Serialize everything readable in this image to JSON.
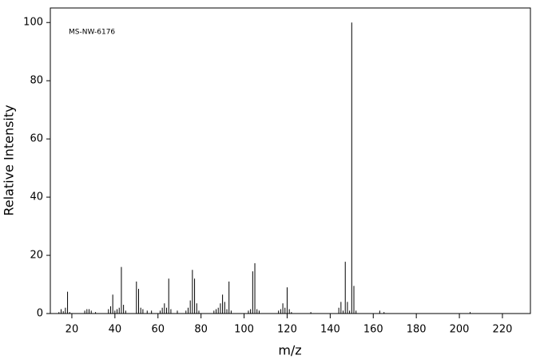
{
  "chart_data": {
    "type": "stem",
    "annotation": "MS-NW-6176",
    "xlabel": "m/z",
    "ylabel": "Relative Intensity",
    "color": "#000000",
    "xlim": [
      10,
      233
    ],
    "ylim": [
      0,
      105
    ],
    "xticks": [
      20,
      40,
      60,
      80,
      100,
      120,
      140,
      160,
      180,
      200,
      220
    ],
    "yticks": [
      0,
      20,
      40,
      60,
      80,
      100
    ],
    "x": [
      14,
      15,
      16,
      17,
      18,
      19,
      26,
      27,
      28,
      29,
      31,
      37,
      38,
      39,
      40,
      41,
      42,
      43,
      44,
      45,
      50,
      51,
      52,
      53,
      55,
      57,
      61,
      62,
      63,
      64,
      65,
      66,
      69,
      73,
      74,
      75,
      76,
      77,
      78,
      79,
      86,
      87,
      88,
      89,
      90,
      91,
      92,
      93,
      94,
      102,
      103,
      104,
      105,
      106,
      107,
      116,
      117,
      118,
      119,
      120,
      121,
      122,
      131,
      144,
      145,
      146,
      147,
      148,
      149,
      150,
      151,
      152,
      163,
      165,
      205
    ],
    "values": [
      0.5,
      1.5,
      0.8,
      2,
      7.5,
      0.5,
      1,
      1.5,
      1.5,
      1,
      0.5,
      1.5,
      2.5,
      6.5,
      1,
      1.5,
      2,
      16,
      3,
      1,
      11,
      8.5,
      2,
      1.5,
      1,
      1,
      1,
      2,
      3.5,
      2,
      12,
      1.5,
      1,
      1,
      2,
      4.5,
      15,
      12,
      3.5,
      1,
      1,
      1.5,
      2,
      3.5,
      6.5,
      4,
      1.5,
      11,
      1,
      1,
      1.5,
      14.5,
      17.3,
      1.5,
      1,
      1,
      1.5,
      3.5,
      2,
      9,
      1.5,
      0.5,
      0.5,
      2,
      4,
      1,
      17.8,
      4,
      1,
      100,
      9.5,
      1,
      1,
      0.5,
      0.5
    ]
  }
}
